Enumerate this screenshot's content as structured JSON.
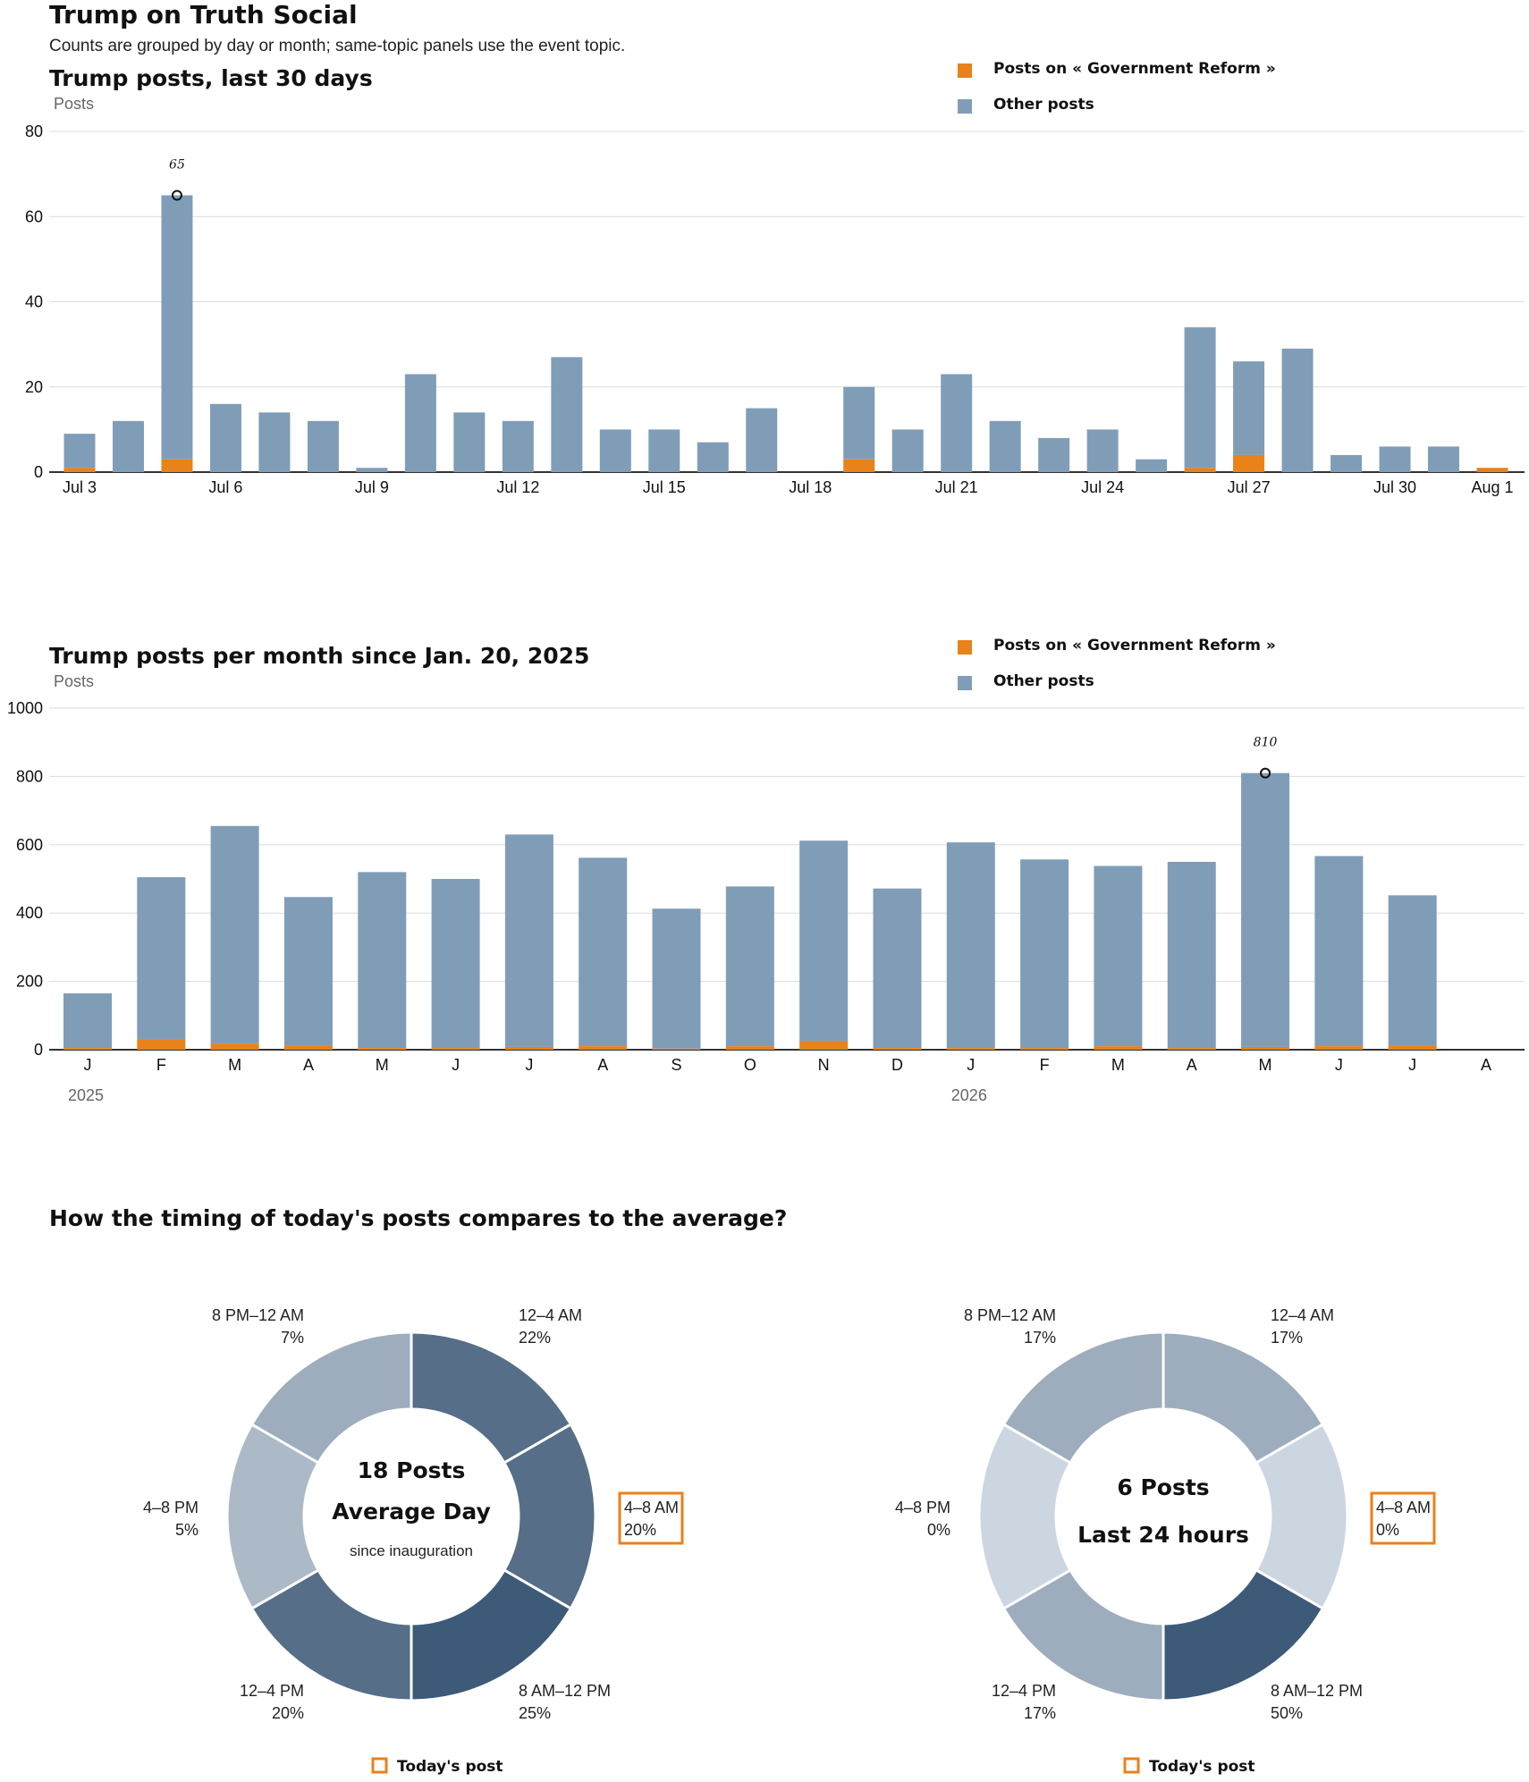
{
  "header": {
    "title": "Trump on Truth Social",
    "subtitle": "Counts are grouped by day or month; same-topic panels use the event topic."
  },
  "legend": {
    "topic_label": "Posts on « Government Reform »",
    "other_label": "Other posts"
  },
  "colors": {
    "topic": "#e8821a",
    "other": "#809db8",
    "highlight": "#e8821a",
    "donut_shades": [
      "#3d5a78",
      "#566e87",
      "#7f93a8",
      "#9dadbd",
      "#acbac7",
      "#ccd6e0"
    ]
  },
  "chart_data": [
    {
      "type": "bar",
      "stacked": true,
      "title": "Trump posts, last 30 days",
      "ylabel": "Posts",
      "ylim": [
        0,
        80
      ],
      "yticks": [
        0,
        20,
        40,
        60,
        80
      ],
      "grid": true,
      "legend_position": "top-right",
      "categories": [
        "Jul 3",
        "Jul 4",
        "Jul 5",
        "Jul 6",
        "Jul 7",
        "Jul 8",
        "Jul 9",
        "Jul 10",
        "Jul 11",
        "Jul 12",
        "Jul 13",
        "Jul 14",
        "Jul 15",
        "Jul 16",
        "Jul 17",
        "Jul 18",
        "Jul 19",
        "Jul 20",
        "Jul 21",
        "Jul 22",
        "Jul 23",
        "Jul 24",
        "Jul 25",
        "Jul 26",
        "Jul 27",
        "Jul 28",
        "Jul 29",
        "Jul 30",
        "Jul 31",
        "Aug 1"
      ],
      "tick_labels": [
        "Jul 3",
        "",
        "",
        "Jul 6",
        "",
        "",
        "Jul 9",
        "",
        "",
        "Jul 12",
        "",
        "",
        "Jul 15",
        "",
        "",
        "Jul 18",
        "",
        "",
        "Jul 21",
        "",
        "",
        "Jul 24",
        "",
        "",
        "Jul 27",
        "",
        "",
        "Jul 30",
        "",
        "Aug 1"
      ],
      "series": [
        {
          "name": "Posts on « Government Reform »",
          "values": [
            1,
            0,
            3,
            0,
            0,
            0,
            0,
            0,
            0,
            0,
            0,
            0,
            0,
            0,
            0,
            0,
            3,
            0,
            0,
            0,
            0,
            0,
            0,
            1,
            4,
            0,
            0,
            0,
            0,
            1
          ]
        },
        {
          "name": "Other posts",
          "values": [
            8,
            12,
            62,
            16,
            14,
            12,
            1,
            23,
            14,
            12,
            27,
            10,
            10,
            7,
            15,
            0,
            17,
            10,
            23,
            12,
            8,
            10,
            3,
            33,
            22,
            29,
            4,
            6,
            6,
            0
          ]
        }
      ],
      "annotation": {
        "category": "Jul 5",
        "label": "65"
      }
    },
    {
      "type": "bar",
      "stacked": true,
      "title": "Trump posts per month since Jan. 20, 2025",
      "ylabel": "Posts",
      "ylim": [
        0,
        1000
      ],
      "yticks": [
        0,
        200,
        400,
        600,
        800,
        1000
      ],
      "grid": true,
      "legend_position": "top-right",
      "categories": [
        "J",
        "F",
        "M",
        "A",
        "M",
        "J",
        "J",
        "A",
        "S",
        "O",
        "N",
        "D",
        "J",
        "F",
        "M",
        "A",
        "M",
        "J",
        "J",
        "A"
      ],
      "year_labels": [
        {
          "index": 0,
          "label": "2025"
        },
        {
          "index": 12,
          "label": "2026"
        }
      ],
      "series": [
        {
          "name": "Posts on « Government Reform »",
          "values": [
            5,
            30,
            18,
            12,
            5,
            5,
            8,
            10,
            3,
            10,
            25,
            5,
            5,
            5,
            10,
            5,
            8,
            10,
            12,
            0
          ]
        },
        {
          "name": "Other posts",
          "values": [
            160,
            475,
            637,
            435,
            515,
            495,
            622,
            552,
            410,
            468,
            587,
            467,
            602,
            552,
            528,
            545,
            802,
            557,
            440,
            0
          ]
        }
      ],
      "annotation": {
        "category_index": 16,
        "label": "810"
      }
    },
    {
      "type": "pie",
      "donut": true,
      "center": {
        "line1": "18 Posts",
        "line2": "Average Day",
        "line3": "since inauguration"
      },
      "slices": [
        {
          "label": "12–4 AM",
          "value": 22
        },
        {
          "label": "4–8 AM",
          "value": 20,
          "highlight": true
        },
        {
          "label": "8 AM–12 PM",
          "value": 25
        },
        {
          "label": "12–4 PM",
          "value": 20
        },
        {
          "label": "4–8 PM",
          "value": 5
        },
        {
          "label": "8 PM–12 AM",
          "value": 7
        }
      ],
      "legend": "Today's post"
    },
    {
      "type": "pie",
      "donut": true,
      "center": {
        "line1": "6 Posts",
        "line2": "Last 24 hours",
        "line3": ""
      },
      "slices": [
        {
          "label": "12–4 AM",
          "value": 17
        },
        {
          "label": "4–8 AM",
          "value": 0,
          "highlight": true
        },
        {
          "label": "8 AM–12 PM",
          "value": 50
        },
        {
          "label": "12–4 PM",
          "value": 17
        },
        {
          "label": "4–8 PM",
          "value": 0
        },
        {
          "label": "8 PM–12 AM",
          "value": 17
        }
      ],
      "legend": "Today's post"
    }
  ],
  "section3": {
    "title": "How the timing of today's posts compares to the average?"
  }
}
